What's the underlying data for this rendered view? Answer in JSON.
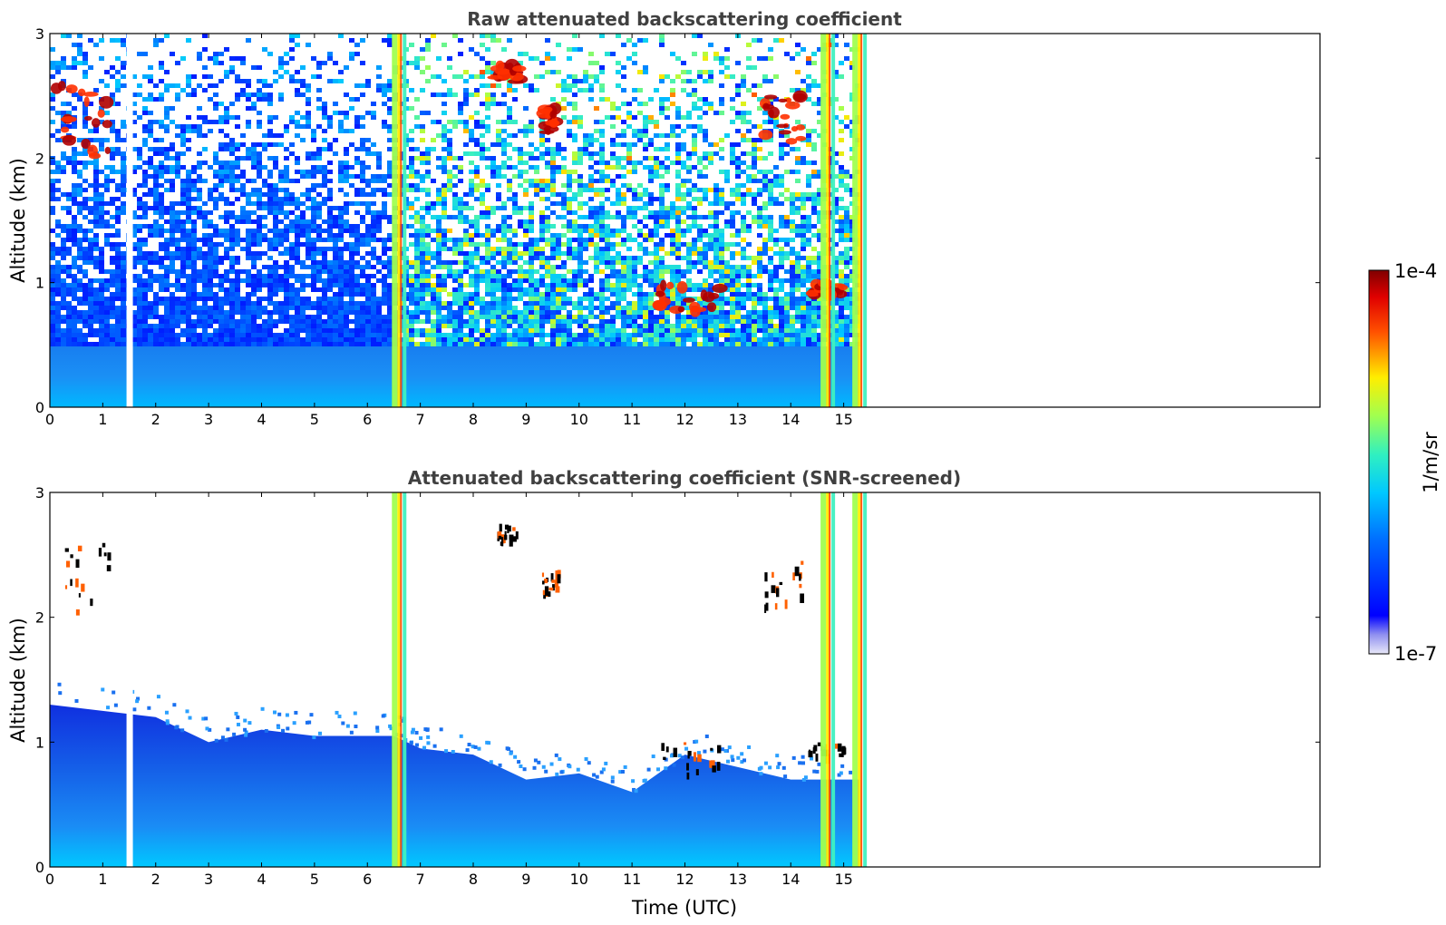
{
  "chart_data": [
    {
      "type": "heatmap",
      "title": "Raw attenuated backscattering coefficient",
      "xlabel": "",
      "ylabel": "Altitude (km)",
      "xlim": [
        0,
        24
      ],
      "ylim": [
        0,
        3
      ],
      "xticks": [
        "0",
        "1",
        "2",
        "3",
        "4",
        "5",
        "6",
        "7",
        "8",
        "9",
        "10",
        "11",
        "12",
        "13",
        "14",
        "15"
      ],
      "yticks": [
        "0",
        "1",
        "2",
        "3"
      ],
      "data_end_time": 15.3,
      "gap_times": [
        1.5
      ],
      "high_signal_columns": [
        6.6,
        14.7,
        15.3
      ],
      "cloud_features": [
        {
          "time_start": 0.1,
          "time_end": 1.1,
          "alt_bottom": 2.0,
          "alt_top": 2.6
        },
        {
          "time_start": 8.4,
          "time_end": 8.9,
          "alt_bottom": 2.6,
          "alt_top": 2.75
        },
        {
          "time_start": 9.3,
          "time_end": 9.6,
          "alt_bottom": 2.2,
          "alt_top": 2.4
        },
        {
          "time_start": 11.5,
          "time_end": 12.7,
          "alt_bottom": 0.75,
          "alt_top": 1.0
        },
        {
          "time_start": 13.5,
          "time_end": 14.2,
          "alt_bottom": 2.1,
          "alt_top": 2.5
        },
        {
          "time_start": 14.3,
          "time_end": 15.0,
          "alt_bottom": 0.9,
          "alt_top": 1.0
        }
      ]
    },
    {
      "type": "heatmap",
      "title": "Attenuated backscattering coefficient (SNR-screened)",
      "xlabel": "Time (UTC)",
      "ylabel": "Altitude (km)",
      "xlim": [
        0,
        24
      ],
      "ylim": [
        0,
        3
      ],
      "xticks": [
        "0",
        "1",
        "2",
        "3",
        "4",
        "5",
        "6",
        "7",
        "8",
        "9",
        "10",
        "11",
        "12",
        "13",
        "14",
        "15"
      ],
      "yticks": [
        "0",
        "1",
        "2",
        "3"
      ],
      "data_end_time": 15.3,
      "gap_times": [
        1.5
      ],
      "high_signal_columns": [
        6.6,
        14.7,
        15.3
      ],
      "boundary_layer_top": [
        {
          "time": 0,
          "alt": 1.3
        },
        {
          "time": 2,
          "alt": 1.2
        },
        {
          "time": 3,
          "alt": 1.0
        },
        {
          "time": 4,
          "alt": 1.1
        },
        {
          "time": 5,
          "alt": 1.05
        },
        {
          "time": 6.5,
          "alt": 1.05
        },
        {
          "time": 7,
          "alt": 0.95
        },
        {
          "time": 8,
          "alt": 0.9
        },
        {
          "time": 9,
          "alt": 0.7
        },
        {
          "time": 10,
          "alt": 0.75
        },
        {
          "time": 11,
          "alt": 0.6
        },
        {
          "time": 12,
          "alt": 0.9
        },
        {
          "time": 13,
          "alt": 0.8
        },
        {
          "time": 14,
          "alt": 0.7
        },
        {
          "time": 15.3,
          "alt": 0.7
        }
      ]
    }
  ],
  "colorbar": {
    "label": "1/m/sr",
    "max_label": "1e-4",
    "min_label": "1e-7",
    "scale": "log",
    "colormap": "jet"
  }
}
